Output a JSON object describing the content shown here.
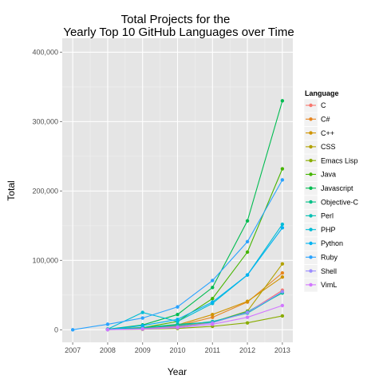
{
  "chart_data": {
    "type": "line",
    "title": [
      "Total Projects for the",
      "Yearly Top 10 GitHub Languages over Time"
    ],
    "xlabel": "Year",
    "ylabel": "Total",
    "x": [
      2007,
      2008,
      2009,
      2010,
      2011,
      2012,
      2013
    ],
    "x_ticks": [
      "2007",
      "2008",
      "2009",
      "2010",
      "2011",
      "2012",
      "2013"
    ],
    "ylim": [
      -18000,
      420000
    ],
    "y_ticks": [
      0,
      100000,
      200000,
      300000,
      400000
    ],
    "y_tick_labels": [
      "0",
      "100,000",
      "200,000",
      "300,000",
      "400,000"
    ],
    "grid": true,
    "background": "#e5e5e5",
    "legend": {
      "title": "Language",
      "position": "right"
    },
    "series": [
      {
        "name": "C",
        "color": "#F8766D",
        "points": [
          [
            2008,
            500
          ],
          [
            2009,
            2000
          ],
          [
            2010,
            5000
          ],
          [
            2011,
            11000
          ],
          [
            2012,
            25000
          ],
          [
            2013,
            57000
          ]
        ]
      },
      {
        "name": "C#",
        "color": "#E7851E",
        "points": [
          [
            2008,
            500
          ],
          [
            2009,
            3000
          ],
          [
            2010,
            6000
          ],
          [
            2011,
            18000
          ],
          [
            2012,
            40000
          ],
          [
            2013,
            82000
          ]
        ]
      },
      {
        "name": "C++",
        "color": "#D09400",
        "points": [
          [
            2008,
            1000
          ],
          [
            2009,
            3500
          ],
          [
            2010,
            7000
          ],
          [
            2011,
            22000
          ],
          [
            2012,
            41000
          ],
          [
            2013,
            76000
          ]
        ]
      },
      {
        "name": "CSS",
        "color": "#B2A100",
        "points": [
          [
            2010,
            4000
          ],
          [
            2011,
            11000
          ],
          [
            2012,
            27000
          ],
          [
            2013,
            95000
          ]
        ]
      },
      {
        "name": "Emacs Lisp",
        "color": "#89AC00",
        "points": [
          [
            2008,
            300
          ],
          [
            2009,
            800
          ],
          [
            2010,
            2000
          ],
          [
            2011,
            5000
          ],
          [
            2012,
            10000
          ],
          [
            2013,
            20000
          ]
        ]
      },
      {
        "name": "Java",
        "color": "#45B500",
        "points": [
          [
            2008,
            500
          ],
          [
            2009,
            3000
          ],
          [
            2010,
            12000
          ],
          [
            2011,
            45000
          ],
          [
            2012,
            112000
          ],
          [
            2013,
            232000
          ]
        ]
      },
      {
        "name": "Javascript",
        "color": "#00BC51",
        "points": [
          [
            2008,
            1000
          ],
          [
            2009,
            7000
          ],
          [
            2010,
            22000
          ],
          [
            2011,
            61000
          ],
          [
            2012,
            157000
          ],
          [
            2013,
            330000
          ]
        ]
      },
      {
        "name": "Objective-C",
        "color": "#00C087",
        "points": [
          [
            2008,
            300
          ],
          [
            2009,
            3000
          ],
          [
            2010,
            8000
          ],
          [
            2011,
            11000
          ],
          [
            2012,
            26000
          ],
          [
            2013,
            53000
          ]
        ]
      },
      {
        "name": "Perl",
        "color": "#00C0B2",
        "points": [
          [
            2008,
            500
          ],
          [
            2009,
            3000
          ],
          [
            2010,
            6000
          ],
          [
            2011,
            12000
          ],
          [
            2012,
            24000
          ],
          [
            2013,
            54000
          ]
        ]
      },
      {
        "name": "PHP",
        "color": "#00BCD6",
        "points": [
          [
            2008,
            1000
          ],
          [
            2009,
            25000
          ],
          [
            2010,
            12000
          ],
          [
            2011,
            38000
          ],
          [
            2012,
            79000
          ],
          [
            2013,
            152000
          ]
        ]
      },
      {
        "name": "Python",
        "color": "#00B3F2",
        "points": [
          [
            2008,
            500
          ],
          [
            2009,
            6000
          ],
          [
            2010,
            15000
          ],
          [
            2011,
            40000
          ],
          [
            2012,
            79000
          ],
          [
            2013,
            147000
          ]
        ]
      },
      {
        "name": "Ruby",
        "color": "#29A3FF",
        "points": [
          [
            2007,
            0
          ],
          [
            2008,
            8000
          ],
          [
            2009,
            17000
          ],
          [
            2010,
            33000
          ],
          [
            2011,
            71000
          ],
          [
            2012,
            127000
          ],
          [
            2013,
            216000
          ]
        ]
      },
      {
        "name": "Shell",
        "color": "#9C8DFF",
        "points": [
          [
            2008,
            300
          ],
          [
            2009,
            1500
          ],
          [
            2010,
            4000
          ],
          [
            2011,
            10000
          ],
          [
            2012,
            25000
          ],
          [
            2013,
            55000
          ]
        ]
      },
      {
        "name": "VimL",
        "color": "#D277FF",
        "points": [
          [
            2008,
            200
          ],
          [
            2009,
            1000
          ],
          [
            2010,
            3000
          ],
          [
            2011,
            8000
          ],
          [
            2012,
            18000
          ],
          [
            2013,
            35000
          ]
        ]
      }
    ]
  }
}
